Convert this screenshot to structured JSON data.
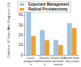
{
  "chart_data": {
    "type": "bar",
    "y_label": "Outcome 10 Years After Diagnosis (%)",
    "categories": [
      "Local progression",
      "Distant metastases",
      "Death from prostate cancer",
      "Death from any cause"
    ],
    "series": [
      {
        "name": "Expectant Management",
        "color": "#9dc3e6",
        "values": [
          44,
          25,
          15,
          32
        ]
      },
      {
        "name": "Radical Prostatectomy",
        "color": "#f0a030",
        "values": [
          19,
          15,
          10,
          27
        ]
      }
    ],
    "ylim": [
      0,
      50
    ],
    "yticks": [
      0,
      10,
      20,
      30,
      40,
      50
    ],
    "grid": false,
    "legend": "upper left"
  }
}
